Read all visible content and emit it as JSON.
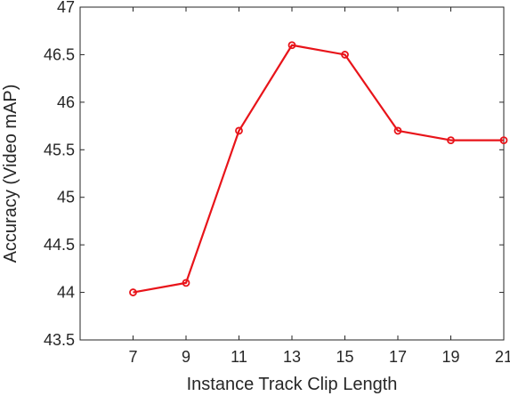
{
  "chart_data": {
    "type": "line",
    "xlabel": "Instance Track Clip Length",
    "ylabel": "Accuracy (Video mAP)",
    "xlim": [
      5,
      21
    ],
    "ylim": [
      43.5,
      47
    ],
    "xticks": [
      7,
      9,
      11,
      13,
      15,
      17,
      19,
      21
    ],
    "xtick_labels": [
      "7",
      "9",
      "11",
      "13",
      "15",
      "17",
      "19",
      "21"
    ],
    "yticks": [
      43.5,
      44,
      44.5,
      45,
      45.5,
      46,
      46.5,
      47
    ],
    "ytick_labels": [
      "43.5",
      "44",
      "44.5",
      "45",
      "45.5",
      "46",
      "46.5",
      "47"
    ],
    "grid": false,
    "series": [
      {
        "color": "#e8141a",
        "marker": "circle",
        "x": [
          7,
          9,
          11,
          13,
          15,
          17,
          19,
          21
        ],
        "values": [
          44.0,
          44.1,
          45.7,
          46.6,
          46.5,
          45.7,
          45.6,
          45.6
        ]
      }
    ]
  }
}
